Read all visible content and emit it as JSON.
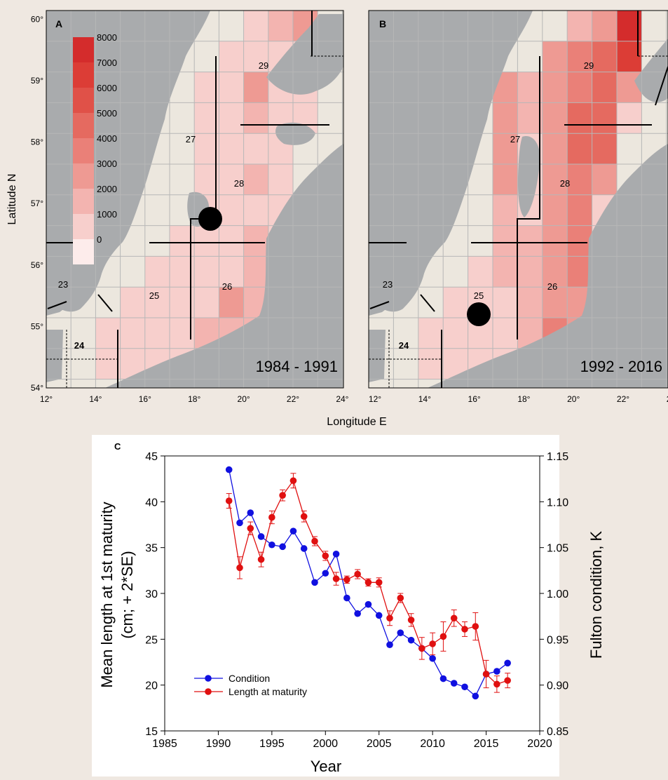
{
  "maps": {
    "axis_label_x": "Longitude E",
    "axis_label_y": "Latitude N",
    "lon_ticks": [
      "12°",
      "14°",
      "16°",
      "18°",
      "20°",
      "22°",
      "24°"
    ],
    "lat_ticks": [
      "54°",
      "55°",
      "56°",
      "57°",
      "58°",
      "59°",
      "60°"
    ],
    "colorbar": {
      "labels": [
        "8000",
        "7000",
        "6000",
        "5000",
        "4000",
        "3000",
        "2000",
        "1000",
        "0"
      ],
      "colors": [
        "#d42c2c",
        "#dc3d36",
        "#e05148",
        "#e56a60",
        "#ea8078",
        "#ee9a93",
        "#f3b4b0",
        "#f7cfcc",
        "#fdeceb"
      ]
    },
    "panels": [
      {
        "letter": "A",
        "period": "1984 - 1991",
        "subdivisions": [
          "29",
          "27",
          "28",
          "25",
          "26",
          "23",
          "24"
        ]
      },
      {
        "letter": "B",
        "period": "1992 - 2016",
        "subdivisions": [
          "29",
          "27",
          "28",
          "25",
          "26",
          "23",
          "24"
        ]
      }
    ]
  },
  "chart_data": {
    "type": "line",
    "panel_letter": "C",
    "xlabel": "Year",
    "ylabel_left_line1": "Mean length at 1st maturity",
    "ylabel_left_line2": "(cm; + 2*SE)",
    "ylabel_right": "Fulton condition, K",
    "xlim": [
      1985,
      2020
    ],
    "ylim_left": [
      15,
      45
    ],
    "ylim_right": [
      0.85,
      1.15
    ],
    "x_ticks": [
      "1985",
      "1990",
      "1995",
      "2000",
      "2005",
      "2010",
      "2015",
      "2020"
    ],
    "y_left_ticks": [
      "15",
      "20",
      "25",
      "30",
      "35",
      "40",
      "45"
    ],
    "y_right_ticks": [
      "0.85",
      "0.90",
      "0.95",
      "1.00",
      "1.05",
      "1.10",
      "1.15"
    ],
    "legend_position": "bottom-left",
    "series": [
      {
        "name": "Condition",
        "axis": "right",
        "color": "#1010e0",
        "x": [
          1991,
          1992,
          1993,
          1994,
          1995,
          1996,
          1997,
          1998,
          1999,
          2000,
          2001,
          2002,
          2003,
          2004,
          2005,
          2006,
          2007,
          2008,
          2009,
          2010,
          2011,
          2012,
          2013,
          2014,
          2015,
          2016,
          2017
        ],
        "values": [
          1.135,
          1.077,
          1.088,
          1.062,
          1.053,
          1.051,
          1.068,
          1.049,
          1.012,
          1.022,
          1.043,
          0.995,
          0.978,
          0.988,
          0.976,
          0.944,
          0.957,
          0.949,
          0.94,
          0.929,
          0.907,
          0.902,
          0.898,
          0.888,
          0.912,
          0.915,
          0.924
        ]
      },
      {
        "name": "Length at maturity",
        "axis": "left",
        "color": "#e01010",
        "x": [
          1991,
          1992,
          1993,
          1994,
          1995,
          1996,
          1997,
          1998,
          1999,
          2000,
          2001,
          2002,
          2003,
          2004,
          2005,
          2006,
          2007,
          2008,
          2009,
          2010,
          2011,
          2012,
          2013,
          2014,
          2015,
          2016,
          2017
        ],
        "values": [
          40.1,
          32.8,
          37.1,
          33.7,
          38.3,
          40.7,
          42.3,
          38.4,
          35.7,
          34.1,
          31.6,
          31.5,
          32.1,
          31.2,
          31.2,
          27.3,
          29.5,
          27.1,
          24.0,
          24.5,
          25.3,
          27.3,
          26.1,
          26.4,
          21.2,
          20.1,
          20.5
        ],
        "error": [
          0.8,
          1.2,
          0.7,
          0.8,
          0.7,
          0.6,
          0.8,
          0.6,
          0.5,
          0.5,
          0.7,
          0.4,
          0.5,
          0.4,
          0.5,
          0.8,
          0.5,
          0.7,
          1.2,
          1.2,
          1.6,
          0.9,
          0.8,
          1.5,
          1.5,
          0.9,
          0.8
        ]
      }
    ]
  }
}
